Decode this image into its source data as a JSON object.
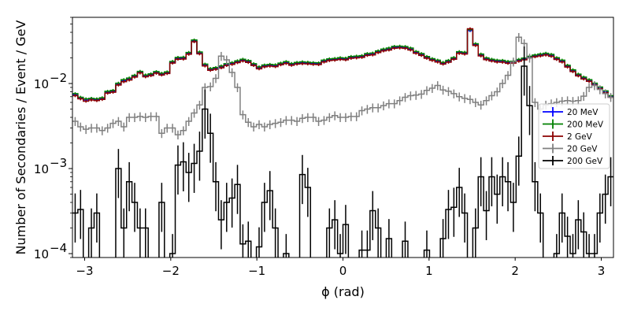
{
  "chart_data": {
    "type": "histogram",
    "title": "",
    "xlabel": "ϕ (rad)",
    "ylabel": "Number of Secondaries / Event / GeV",
    "xlim": [
      -3.1416,
      3.1416
    ],
    "ylim": [
      9e-05,
      0.06
    ],
    "yscale": "log",
    "grid": false,
    "legend_position": "right",
    "bins": 100,
    "x_ticks": [
      -3,
      -2,
      -1,
      0,
      1,
      2,
      3
    ],
    "x_tick_labels": [
      "−3",
      "−2",
      "−1",
      "0",
      "1",
      "2",
      "3"
    ],
    "y_ticks": [
      0.0001,
      0.001,
      0.01
    ],
    "y_tick_labels": [
      "10",
      "10",
      "10"
    ],
    "y_tick_exponents": [
      "−4",
      "−3",
      "−2"
    ],
    "series": [
      {
        "name": "20 MeV",
        "color": "#0000ff",
        "values": [
          0.0074,
          0.0068,
          0.0064,
          0.0066,
          0.0065,
          0.0067,
          0.0079,
          0.0081,
          0.0098,
          0.0108,
          0.0113,
          0.0122,
          0.0136,
          0.0123,
          0.0127,
          0.0135,
          0.0129,
          0.0134,
          0.0178,
          0.0198,
          0.0199,
          0.0226,
          0.0315,
          0.0228,
          0.0165,
          0.0146,
          0.015,
          0.0157,
          0.0167,
          0.0172,
          0.018,
          0.0188,
          0.0181,
          0.0167,
          0.0153,
          0.0161,
          0.0164,
          0.0162,
          0.017,
          0.0176,
          0.0168,
          0.0173,
          0.0175,
          0.0174,
          0.0172,
          0.0171,
          0.0183,
          0.019,
          0.0192,
          0.0196,
          0.0194,
          0.0203,
          0.0205,
          0.0208,
          0.0219,
          0.0222,
          0.0236,
          0.0248,
          0.0254,
          0.0266,
          0.0268,
          0.0265,
          0.0254,
          0.0232,
          0.0219,
          0.0203,
          0.0191,
          0.0183,
          0.0173,
          0.0182,
          0.0197,
          0.0231,
          0.0227,
          0.0419,
          0.0286,
          0.0216,
          0.0195,
          0.0188,
          0.0183,
          0.0182,
          0.0177,
          0.0178,
          0.0187,
          0.0194,
          0.0204,
          0.0211,
          0.0216,
          0.0221,
          0.0214,
          0.0196,
          0.0183,
          0.016,
          0.0141,
          0.0126,
          0.0116,
          0.0108,
          0.0098,
          0.0089,
          0.008,
          0.007
        ]
      },
      {
        "name": "200 MeV",
        "color": "#008000",
        "values": [
          0.0076,
          0.0069,
          0.0066,
          0.0067,
          0.0066,
          0.0068,
          0.0081,
          0.0083,
          0.0101,
          0.0111,
          0.0116,
          0.0125,
          0.0139,
          0.0126,
          0.013,
          0.0138,
          0.0132,
          0.0137,
          0.0182,
          0.0203,
          0.0204,
          0.0232,
          0.0325,
          0.0235,
          0.0169,
          0.015,
          0.0154,
          0.0161,
          0.0171,
          0.0176,
          0.0185,
          0.0193,
          0.0186,
          0.0171,
          0.0157,
          0.0165,
          0.0168,
          0.0166,
          0.0174,
          0.0181,
          0.0172,
          0.0177,
          0.018,
          0.0178,
          0.0176,
          0.0175,
          0.0188,
          0.0195,
          0.0197,
          0.0201,
          0.0199,
          0.0208,
          0.021,
          0.0213,
          0.0225,
          0.0228,
          0.0242,
          0.0254,
          0.0261,
          0.0273,
          0.0275,
          0.0272,
          0.0261,
          0.0238,
          0.0225,
          0.0208,
          0.0196,
          0.0188,
          0.0177,
          0.0187,
          0.0202,
          0.0237,
          0.0233,
          0.043,
          0.0294,
          0.0222,
          0.02,
          0.0193,
          0.0188,
          0.0187,
          0.0182,
          0.0183,
          0.0192,
          0.0199,
          0.0209,
          0.0216,
          0.0222,
          0.0227,
          0.022,
          0.0201,
          0.0188,
          0.0164,
          0.0145,
          0.0129,
          0.0119,
          0.0111,
          0.0101,
          0.0091,
          0.0082,
          0.0072
        ]
      },
      {
        "name": "2 GeV",
        "color": "#8b0000",
        "values": [
          0.0072,
          0.0066,
          0.0062,
          0.0064,
          0.0063,
          0.0065,
          0.0077,
          0.0079,
          0.0096,
          0.0105,
          0.011,
          0.0119,
          0.0133,
          0.012,
          0.0124,
          0.0132,
          0.0126,
          0.0131,
          0.0174,
          0.0193,
          0.0194,
          0.0221,
          0.031,
          0.0223,
          0.0161,
          0.0143,
          0.0147,
          0.0153,
          0.0163,
          0.0168,
          0.0176,
          0.0184,
          0.0177,
          0.0163,
          0.0149,
          0.0157,
          0.016,
          0.0158,
          0.0166,
          0.0172,
          0.0164,
          0.0169,
          0.0171,
          0.017,
          0.0168,
          0.0167,
          0.0179,
          0.0186,
          0.0188,
          0.0192,
          0.019,
          0.0198,
          0.02,
          0.0203,
          0.0214,
          0.0217,
          0.0231,
          0.0242,
          0.0248,
          0.026,
          0.0262,
          0.0259,
          0.0248,
          0.0227,
          0.0214,
          0.0198,
          0.0187,
          0.0179,
          0.0169,
          0.0178,
          0.0193,
          0.0226,
          0.0222,
          0.044,
          0.028,
          0.0211,
          0.0191,
          0.0184,
          0.0179,
          0.0178,
          0.0173,
          0.0174,
          0.0183,
          0.019,
          0.02,
          0.0206,
          0.0211,
          0.0216,
          0.0209,
          0.0192,
          0.0179,
          0.0156,
          0.0138,
          0.0123,
          0.0113,
          0.0106,
          0.0096,
          0.0087,
          0.0078,
          0.0069
        ]
      },
      {
        "name": "20 GeV",
        "color": "#808080",
        "values": [
          0.0036,
          0.0031,
          0.0029,
          0.003,
          0.003,
          0.0028,
          0.003,
          0.0034,
          0.0036,
          0.0031,
          0.004,
          0.004,
          0.0041,
          0.004,
          0.0041,
          0.0041,
          0.0026,
          0.003,
          0.003,
          0.0025,
          0.0028,
          0.0036,
          0.0045,
          0.0056,
          0.009,
          0.0092,
          0.0115,
          0.021,
          0.019,
          0.0135,
          0.009,
          0.0043,
          0.0035,
          0.0031,
          0.0033,
          0.0031,
          0.0033,
          0.0034,
          0.0035,
          0.0037,
          0.0037,
          0.0036,
          0.0039,
          0.004,
          0.004,
          0.0036,
          0.0037,
          0.004,
          0.0042,
          0.004,
          0.004,
          0.0041,
          0.0041,
          0.0048,
          0.005,
          0.0052,
          0.0052,
          0.0055,
          0.0058,
          0.0058,
          0.0063,
          0.0069,
          0.0072,
          0.0073,
          0.0075,
          0.0083,
          0.0088,
          0.0095,
          0.0084,
          0.0081,
          0.0076,
          0.007,
          0.0067,
          0.0065,
          0.006,
          0.0056,
          0.0063,
          0.0072,
          0.008,
          0.01,
          0.0125,
          0.018,
          0.035,
          0.0295,
          0.02,
          0.006,
          0.005,
          0.0056,
          0.0058,
          0.006,
          0.0062,
          0.0063,
          0.0062,
          0.0063,
          0.0071,
          0.009,
          0.0095,
          0.0085,
          0.0076,
          0.0069
        ]
      },
      {
        "name": "200 GeV",
        "color": "#000000",
        "values": [
          0.0003,
          0.00033,
          0.0,
          0.0002,
          0.0003,
          0.0,
          0.0,
          0.0,
          0.001,
          0.0002,
          0.0007,
          0.0004,
          0.0002,
          0.0002,
          0.0,
          0.0,
          0.0004,
          0.0,
          0.0001,
          0.0011,
          0.0012,
          0.0009,
          0.00115,
          0.0016,
          0.005,
          0.0026,
          0.0007,
          0.00025,
          0.0004,
          0.00045,
          0.00065,
          0.00013,
          0.00014,
          0.0,
          0.00012,
          0.0004,
          0.00055,
          0.0002,
          0.0,
          0.0001,
          0.0,
          0.0,
          0.00085,
          0.0006,
          0.0,
          0.0,
          0.0,
          0.0002,
          0.00025,
          0.0001,
          0.00022,
          0.0,
          0.0,
          0.00011,
          0.00011,
          0.00032,
          0.0002,
          0.0,
          0.00015,
          0.0,
          0.0,
          0.00014,
          0.0,
          0.0,
          0.0,
          0.00011,
          0.0,
          0.0,
          0.00015,
          0.00033,
          0.00035,
          0.0006,
          0.0003,
          0.0,
          0.0002,
          0.0008,
          0.00032,
          0.0008,
          0.0005,
          0.0008,
          0.0007,
          0.0004,
          0.0014,
          0.016,
          0.0055,
          0.0007,
          0.0003,
          0.0,
          0.0,
          0.0001,
          0.0003,
          0.00016,
          0.0001,
          0.00025,
          0.00018,
          0.0001,
          0.0001,
          0.0003,
          0.0005,
          0.0008
        ]
      }
    ]
  }
}
